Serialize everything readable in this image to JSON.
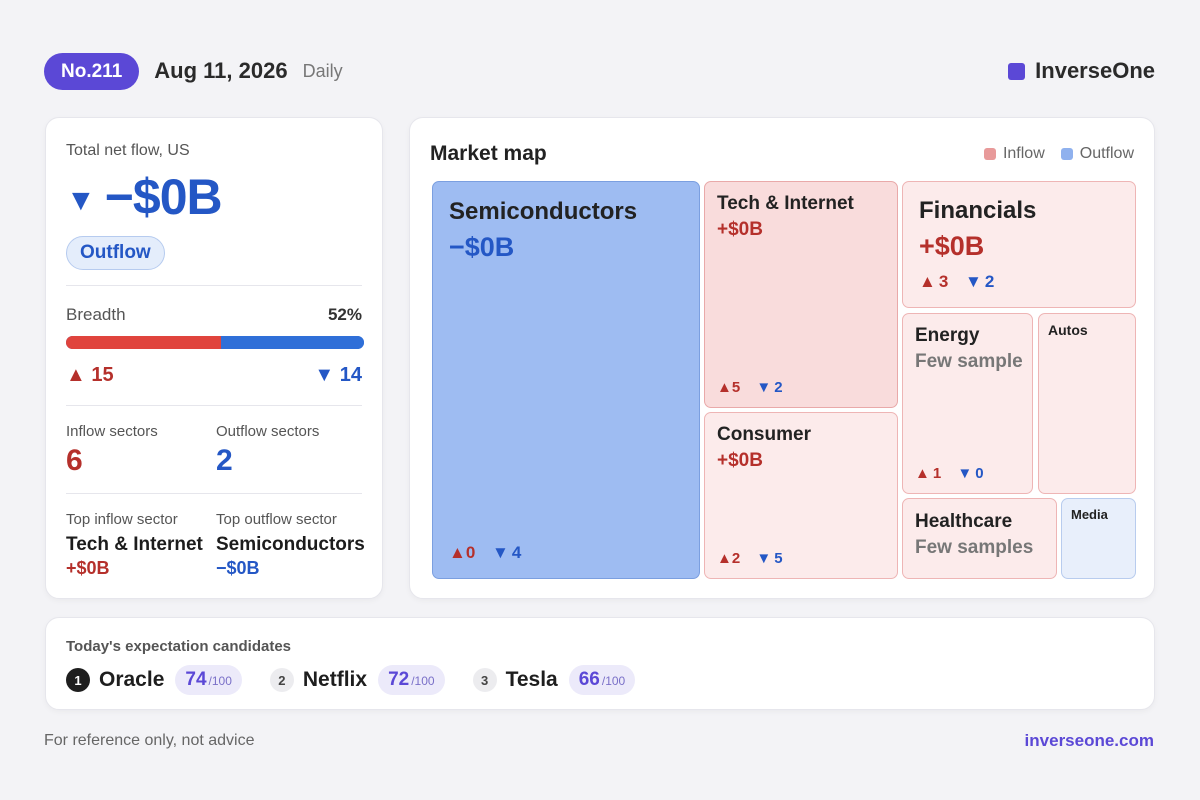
{
  "header": {
    "issue": "No.211",
    "date": "Aug 11, 2026",
    "period": "Daily",
    "brand": "InverseOne",
    "brand_color": "#5b48d6"
  },
  "summary": {
    "net_flow_label": "Total net flow, US",
    "net_flow_arrow": "▼",
    "net_flow_value": "−$0B",
    "flow_status": "Outflow",
    "breadth_label": "Breadth",
    "breadth_pct_text": "52%",
    "breadth_fraction": 0.52,
    "up_arrow": "▲",
    "down_arrow": "▼",
    "advancers": "15",
    "decliners": "14",
    "inflow_sectors_label": "Inflow sectors",
    "inflow_sectors": "6",
    "outflow_sectors_label": "Outflow sectors",
    "outflow_sectors": "2",
    "top_inflow_label": "Top inflow sector",
    "top_inflow_name": "Tech & Internet",
    "top_inflow_value": "+$0B",
    "top_outflow_label": "Top outflow sector",
    "top_outflow_name": "Semiconductors",
    "top_outflow_value": "−$0B"
  },
  "market_map": {
    "title": "Market map",
    "legend": [
      {
        "label": "Inflow",
        "color": "#e89a9a"
      },
      {
        "label": "Outflow",
        "color": "#8fb1ee"
      }
    ],
    "tiles": {
      "semiconductors": {
        "name": "Semiconductors",
        "value": "−$0B",
        "up": "0",
        "down": "4"
      },
      "tech": {
        "name": "Tech & Internet",
        "value": "+$0B",
        "up": "5",
        "down": "2"
      },
      "consumer": {
        "name": "Consumer",
        "value": "+$0B",
        "up": "2",
        "down": "5"
      },
      "financials": {
        "name": "Financials",
        "value": "+$0B",
        "up": "3",
        "down": "2"
      },
      "energy": {
        "name": "Energy",
        "value": "Few sample",
        "up": "1",
        "down": "0"
      },
      "autos": {
        "name": "Autos"
      },
      "healthcare": {
        "name": "Healthcare",
        "value": "Few samples"
      },
      "media": {
        "name": "Media"
      }
    }
  },
  "candidates": {
    "title": "Today's expectation candidates",
    "score_max": "/100",
    "items": [
      {
        "rank": "1",
        "name": "Oracle",
        "score": "74"
      },
      {
        "rank": "2",
        "name": "Netflix",
        "score": "72"
      },
      {
        "rank": "3",
        "name": "Tesla",
        "score": "66"
      }
    ]
  },
  "footer": {
    "note": "For reference only, not advice",
    "url": "inverseone.com"
  }
}
